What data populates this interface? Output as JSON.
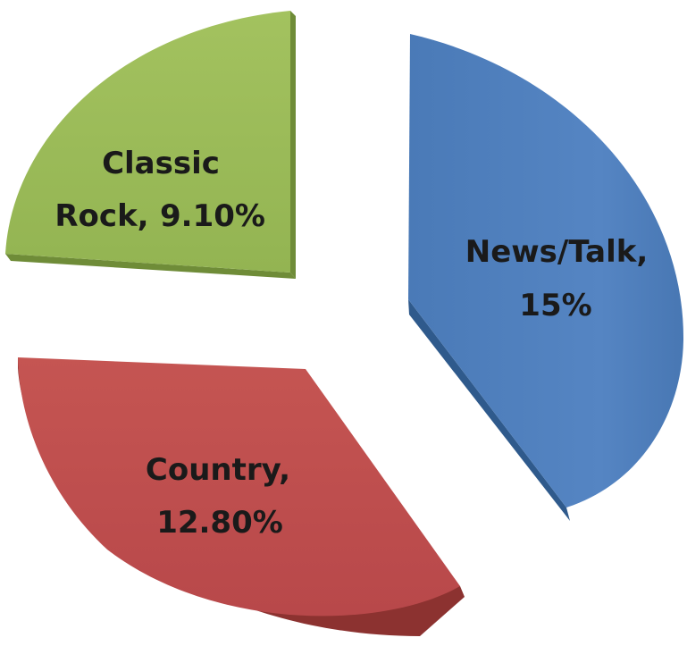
{
  "chart_data": {
    "type": "pie",
    "style": "3d-exploded",
    "slices": [
      {
        "name": "News/Talk",
        "value": 15,
        "value_label": "15%",
        "color": "#4f81bd",
        "side_color": "#2f5a8c"
      },
      {
        "name": "Country",
        "value": 12.8,
        "value_label": "12.80%",
        "color": "#c0504d",
        "side_color": "#8c3230"
      },
      {
        "name": "Classic Rock",
        "value": 9.1,
        "value_label": "9.10%",
        "color": "#9bbb59",
        "side_color": "#6f8c38"
      }
    ],
    "labels": {
      "news_talk_name": "News/Talk,",
      "news_talk_value": "15%",
      "country_name": "Country,",
      "country_value": "12.80%",
      "classic_rock_name": "Classic",
      "classic_rock_name2": "Rock,",
      "classic_rock_value": "9.10%"
    }
  }
}
